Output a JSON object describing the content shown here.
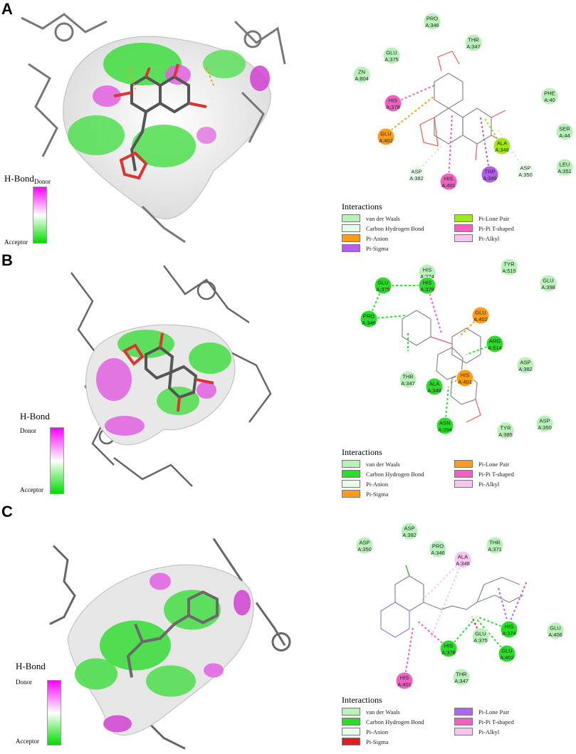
{
  "colors": {
    "vdw": "#b9f2b9",
    "chb": "#e9fbe9",
    "hbond": "#2bdc2b",
    "pi_anion": "#ff9d1a",
    "pi_sigma_purple": "#b45cf0",
    "pi_sigma_red": "#e61b1b",
    "pi_lone_pair_lime": "#9fe81a",
    "pi_lone_pair_purple": "#b066f5",
    "pipi": "#f060c0",
    "pi_alkyl": "#f8c5f0",
    "donor": "#ff00ff",
    "acceptor": "#00dd00"
  },
  "hbond_scale": {
    "title": "H-Bond",
    "top": "Donor",
    "bottom": "Acceptor"
  },
  "panels": [
    {
      "letter": "A",
      "residues": [
        {
          "name": "PRO",
          "num": "A:346",
          "type": "vdw"
        },
        {
          "name": "THR",
          "num": "A:347",
          "type": "vdw"
        },
        {
          "name": "GLU",
          "num": "A:375",
          "type": "vdw"
        },
        {
          "name": "ZN",
          "num": "A:804",
          "type": "vdw"
        },
        {
          "name": "HIS",
          "num": "A:378",
          "type": "pipi"
        },
        {
          "name": "PHE",
          "num": "A:40",
          "type": "vdw"
        },
        {
          "name": "SER",
          "num": "A:44",
          "type": "vdw"
        },
        {
          "name": "GLU",
          "num": "A:402",
          "type": "pi_anion"
        },
        {
          "name": "ALA",
          "num": "A:348",
          "type": "pi_lone_pair"
        },
        {
          "name": "LEU",
          "num": "A:351",
          "type": "vdw"
        },
        {
          "name": "ASP",
          "num": "A:382",
          "type": "chb"
        },
        {
          "name": "ASP",
          "num": "A:350",
          "type": "chb"
        },
        {
          "name": "HIS",
          "num": "A:401",
          "type": "pipi"
        },
        {
          "name": "TRP",
          "num": "A:349",
          "type": "pi_sigma"
        }
      ],
      "legend": {
        "title": "Interactions",
        "items": [
          {
            "label": "van der Waals",
            "color": "#b9f2b9"
          },
          {
            "label": "Pi-Lone Pair",
            "color": "#9fe81a"
          },
          {
            "label": "Carbon Hydrogen Bond",
            "color": "#e9fbe9"
          },
          {
            "label": "Pi-Pi T-shaped",
            "color": "#f060c0"
          },
          {
            "label": "Pi-Anion",
            "color": "#ff9d1a"
          },
          {
            "label": "Pi-Alkyl",
            "color": "#f8c5f0"
          },
          {
            "label": "Pi-Sigma",
            "color": "#b45cf0"
          }
        ]
      }
    },
    {
      "letter": "B",
      "residues": [
        {
          "name": "HIS",
          "num": "A:374",
          "type": "vdw"
        },
        {
          "name": "TYR",
          "num": "A:515",
          "type": "vdw"
        },
        {
          "name": "GLU",
          "num": "A:375",
          "type": "hbond"
        },
        {
          "name": "HIS",
          "num": "A:378",
          "type": "hbond"
        },
        {
          "name": "GLU",
          "num": "A:402",
          "type": "pi_anion"
        },
        {
          "name": "GLU",
          "num": "A:398",
          "type": "vdw"
        },
        {
          "name": "PRO",
          "num": "A:346",
          "type": "hbond"
        },
        {
          "name": "ARG",
          "num": "A:514",
          "type": "hbond"
        },
        {
          "name": "THR",
          "num": "A:347",
          "type": "vdw"
        },
        {
          "name": "HIS",
          "num": "A:401",
          "type": "pi_anion"
        },
        {
          "name": "ALA",
          "num": "A:348",
          "type": "hbond"
        },
        {
          "name": "ASP",
          "num": "A:382",
          "type": "vdw"
        },
        {
          "name": "ASN",
          "num": "A:394",
          "type": "hbond"
        },
        {
          "name": "ASP",
          "num": "A:350",
          "type": "vdw"
        },
        {
          "name": "TYR",
          "num": "A:385",
          "type": "vdw"
        }
      ],
      "legend": {
        "title": "Interactions",
        "items": [
          {
            "label": "van der Waals",
            "color": "#b9f2b9"
          },
          {
            "label": "Pi-Lone Pair",
            "color": "#ff9d1a"
          },
          {
            "label": "Carbon Hydrogen Bond",
            "color": "#2bdc2b"
          },
          {
            "label": "Pi-Pi T-shaped",
            "color": "#f060c0"
          },
          {
            "label": "Pi-Anion",
            "color": "#e9fbe9"
          },
          {
            "label": "Pi-Alkyl",
            "color": "#f8c5f0"
          },
          {
            "label": "Pi-Sigma",
            "color": "#ff9d1a"
          }
        ]
      }
    },
    {
      "letter": "C",
      "residues": [
        {
          "name": "ASP",
          "num": "A:382",
          "type": "vdw"
        },
        {
          "name": "ASP",
          "num": "A:350",
          "type": "vdw"
        },
        {
          "name": "PRO",
          "num": "A:346",
          "type": "vdw"
        },
        {
          "name": "THR",
          "num": "A:371",
          "type": "vdw"
        },
        {
          "name": "ALA",
          "num": "A:348",
          "type": "pi_alkyl"
        },
        {
          "name": "HIS",
          "num": "A:374",
          "type": "hbond"
        },
        {
          "name": "GLU",
          "num": "A:406",
          "type": "vdw"
        },
        {
          "name": "HIS",
          "num": "A:378",
          "type": "hbond"
        },
        {
          "name": "GLU",
          "num": "A:375",
          "type": "vdw"
        },
        {
          "name": "GLU",
          "num": "A:402",
          "type": "hbond"
        },
        {
          "name": "HIS",
          "num": "A:401",
          "type": "pipi"
        },
        {
          "name": "THR",
          "num": "A:347",
          "type": "vdw"
        }
      ],
      "legend": {
        "title": "Interactions",
        "items": [
          {
            "label": "van der Waals",
            "color": "#b9f2b9"
          },
          {
            "label": "Pi-Lone Pair",
            "color": "#b066f5"
          },
          {
            "label": "Carbon Hydrogen Bond",
            "color": "#2bdc2b"
          },
          {
            "label": "Pi-Pi T-shaped",
            "color": "#f060c0"
          },
          {
            "label": "Pi-Anion",
            "color": "#e9fbe9"
          },
          {
            "label": "Pi-Alkyl",
            "color": "#f8c5f0"
          },
          {
            "label": "Pi-Sigma",
            "color": "#e61b1b"
          }
        ]
      }
    }
  ]
}
